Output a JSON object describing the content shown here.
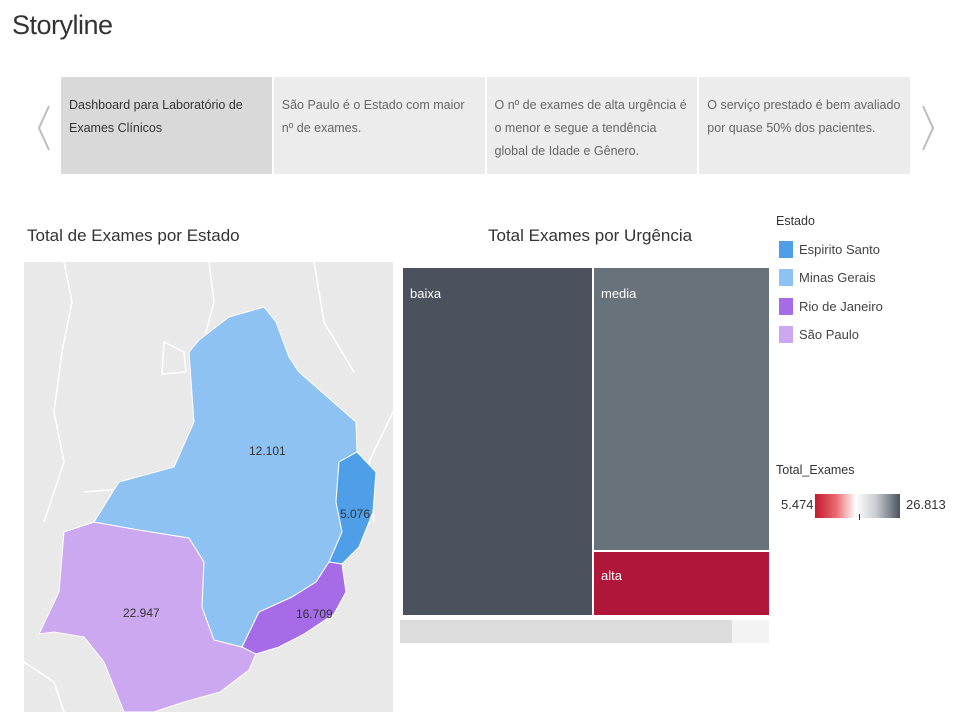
{
  "story": {
    "title": "Storyline",
    "points": [
      {
        "text": "Dashboard para Laboratório de Exames Clínicos",
        "active": true
      },
      {
        "text": "São Paulo é o Estado com maior nº de exames.",
        "active": false
      },
      {
        "text": "O nº de exames de alta urgência é o menor e segue a tendência global de Idade e Gênero.",
        "active": false
      },
      {
        "text": "O serviço prestado é bem avaliado por quase 50% dos pacientes.",
        "active": false
      }
    ]
  },
  "map": {
    "title": "Total de Exames por Estado",
    "labels": {
      "minas_gerais": "12.101",
      "espirito_santo": "5.076",
      "rio_de_janeiro": "16.709",
      "sao_paulo": "22.947"
    }
  },
  "treemap": {
    "title": "Total Exames por Urgência",
    "tiles": [
      {
        "label": "baixa",
        "color": "#4b525e"
      },
      {
        "label": "media",
        "color": "#68727a"
      },
      {
        "label": "alta",
        "color": "#b0163a"
      }
    ]
  },
  "legend_estado": {
    "title": "Estado",
    "items": [
      {
        "label": "Espirito Santo",
        "color": "#4e9ee8"
      },
      {
        "label": "Minas Gerais",
        "color": "#8ec2f2"
      },
      {
        "label": "Rio de Janeiro",
        "color": "#a66ce8"
      },
      {
        "label": "São Paulo",
        "color": "#cba8f0"
      }
    ]
  },
  "legend_total": {
    "title": "Total_Exames",
    "min": "5.474",
    "max": "26.813"
  }
}
